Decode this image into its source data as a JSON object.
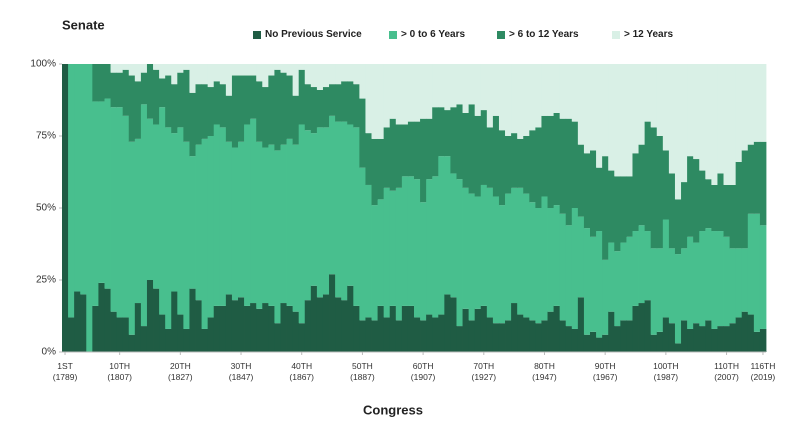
{
  "chart_data": {
    "type": "stacked_bar",
    "title": "Senate",
    "x_label": "Congress",
    "ylim": [
      0,
      100
    ],
    "yticks": [
      {
        "value": 0,
        "label": "0%"
      },
      {
        "value": 25,
        "label": "25%"
      },
      {
        "value": 50,
        "label": "50%"
      },
      {
        "value": 75,
        "label": "75%"
      },
      {
        "value": 100,
        "label": "100%"
      }
    ],
    "categories": [
      "1ST (1789)",
      null,
      null,
      null,
      null,
      null,
      null,
      null,
      null,
      "10TH (1807)",
      null,
      null,
      null,
      null,
      null,
      null,
      null,
      null,
      null,
      "20TH (1827)",
      null,
      null,
      null,
      null,
      null,
      null,
      null,
      null,
      null,
      "30TH (1847)",
      null,
      null,
      null,
      null,
      null,
      null,
      null,
      null,
      null,
      "40TH (1867)",
      null,
      null,
      null,
      null,
      null,
      null,
      null,
      null,
      null,
      "50TH (1887)",
      null,
      null,
      null,
      null,
      null,
      null,
      null,
      null,
      null,
      "60TH (1907)",
      null,
      null,
      null,
      null,
      null,
      null,
      null,
      null,
      null,
      "70TH (1927)",
      null,
      null,
      null,
      null,
      null,
      null,
      null,
      null,
      null,
      "80TH (1947)",
      null,
      null,
      null,
      null,
      null,
      null,
      null,
      null,
      null,
      "90TH (1967)",
      null,
      null,
      null,
      null,
      null,
      null,
      null,
      null,
      null,
      "100TH (1987)",
      null,
      null,
      null,
      null,
      null,
      null,
      null,
      null,
      null,
      "110TH (2007)",
      null,
      null,
      null,
      null,
      null,
      "116TH (2019)"
    ],
    "series": [
      {
        "name": "No Previous Service",
        "color": "#1f5c44",
        "values": [
          100,
          12,
          21,
          20,
          0,
          16,
          24,
          22,
          14,
          12,
          12,
          6,
          17,
          9,
          25,
          22,
          13,
          8,
          21,
          13,
          8,
          22,
          18,
          8,
          12,
          16,
          16,
          20,
          18,
          19,
          16,
          17,
          15,
          17,
          16,
          10,
          17,
          16,
          14,
          10,
          18,
          23,
          19,
          20,
          27,
          19,
          18,
          23,
          16,
          11,
          12,
          11,
          16,
          12,
          16,
          11,
          16,
          16,
          12,
          11,
          13,
          12,
          13,
          20,
          19,
          9,
          15,
          11,
          15,
          16,
          12,
          10,
          10,
          11,
          17,
          13,
          12,
          11,
          10,
          11,
          14,
          16,
          11,
          9,
          8,
          19,
          6,
          7,
          5,
          6,
          14,
          9,
          11,
          11,
          16,
          17,
          18,
          6,
          7,
          12,
          10,
          3,
          11,
          8,
          10,
          9,
          11,
          8,
          9,
          9,
          10,
          12,
          14,
          13,
          7,
          8
        ]
      },
      {
        "name": "> 0 to 6 Years",
        "color": "#48bf8e",
        "values": [
          0,
          88,
          79,
          80,
          100,
          71,
          63,
          66,
          71,
          73,
          70,
          67,
          57,
          77,
          56,
          57,
          72,
          70,
          55,
          65,
          65,
          46,
          54,
          66,
          63,
          63,
          62,
          53,
          53,
          54,
          63,
          64,
          58,
          54,
          56,
          60,
          55,
          58,
          58,
          69,
          59,
          53,
          59,
          58,
          55,
          61,
          62,
          56,
          62,
          53,
          46,
          40,
          37,
          45,
          40,
          46,
          45,
          45,
          48,
          41,
          47,
          49,
          55,
          48,
          43,
          51,
          42,
          44,
          39,
          42,
          45,
          44,
          41,
          44,
          40,
          44,
          43,
          41,
          40,
          43,
          36,
          35,
          37,
          35,
          42,
          28,
          37,
          33,
          37,
          26,
          24,
          26,
          27,
          29,
          26,
          27,
          24,
          30,
          29,
          34,
          26,
          31,
          25,
          32,
          28,
          33,
          32,
          34,
          33,
          31,
          26,
          24,
          22,
          35,
          41,
          36
        ]
      },
      {
        "name": "> 6 to 12 Years",
        "color": "#2e8a62",
        "values": [
          0,
          0,
          0,
          0,
          0,
          13,
          13,
          12,
          12,
          12,
          16,
          23,
          20,
          11,
          19,
          19,
          10,
          18,
          17,
          19,
          25,
          22,
          21,
          19,
          17,
          15,
          15,
          16,
          25,
          23,
          17,
          15,
          21,
          21,
          24,
          28,
          25,
          22,
          17,
          19,
          16,
          16,
          13,
          14,
          11,
          13,
          14,
          15,
          15,
          24,
          18,
          23,
          21,
          21,
          25,
          22,
          18,
          19,
          20,
          29,
          21,
          24,
          17,
          16,
          23,
          26,
          26,
          31,
          28,
          26,
          21,
          28,
          26,
          20,
          19,
          17,
          20,
          25,
          28,
          28,
          32,
          32,
          33,
          37,
          30,
          25,
          26,
          30,
          22,
          36,
          25,
          26,
          23,
          21,
          27,
          28,
          38,
          42,
          39,
          24,
          26,
          19,
          23,
          28,
          29,
          21,
          17,
          16,
          20,
          18,
          22,
          30,
          34,
          24,
          25,
          29
        ]
      },
      {
        "name": "> 12 Years",
        "color": "#d9f0e6",
        "values": [
          0,
          0,
          0,
          0,
          0,
          0,
          0,
          0,
          3,
          3,
          2,
          4,
          6,
          3,
          0,
          2,
          5,
          4,
          7,
          3,
          2,
          10,
          7,
          7,
          8,
          6,
          7,
          11,
          4,
          4,
          4,
          4,
          6,
          8,
          4,
          2,
          3,
          4,
          11,
          2,
          7,
          8,
          9,
          8,
          7,
          7,
          6,
          6,
          7,
          12,
          24,
          26,
          26,
          22,
          19,
          21,
          21,
          20,
          20,
          19,
          19,
          15,
          15,
          16,
          15,
          14,
          17,
          14,
          18,
          16,
          22,
          18,
          23,
          25,
          24,
          26,
          25,
          23,
          22,
          18,
          18,
          17,
          19,
          19,
          20,
          28,
          31,
          30,
          36,
          32,
          37,
          39,
          39,
          39,
          31,
          28,
          20,
          22,
          25,
          30,
          38,
          47,
          41,
          32,
          33,
          37,
          40,
          42,
          38,
          42,
          42,
          34,
          30,
          28,
          27,
          27
        ]
      }
    ]
  }
}
